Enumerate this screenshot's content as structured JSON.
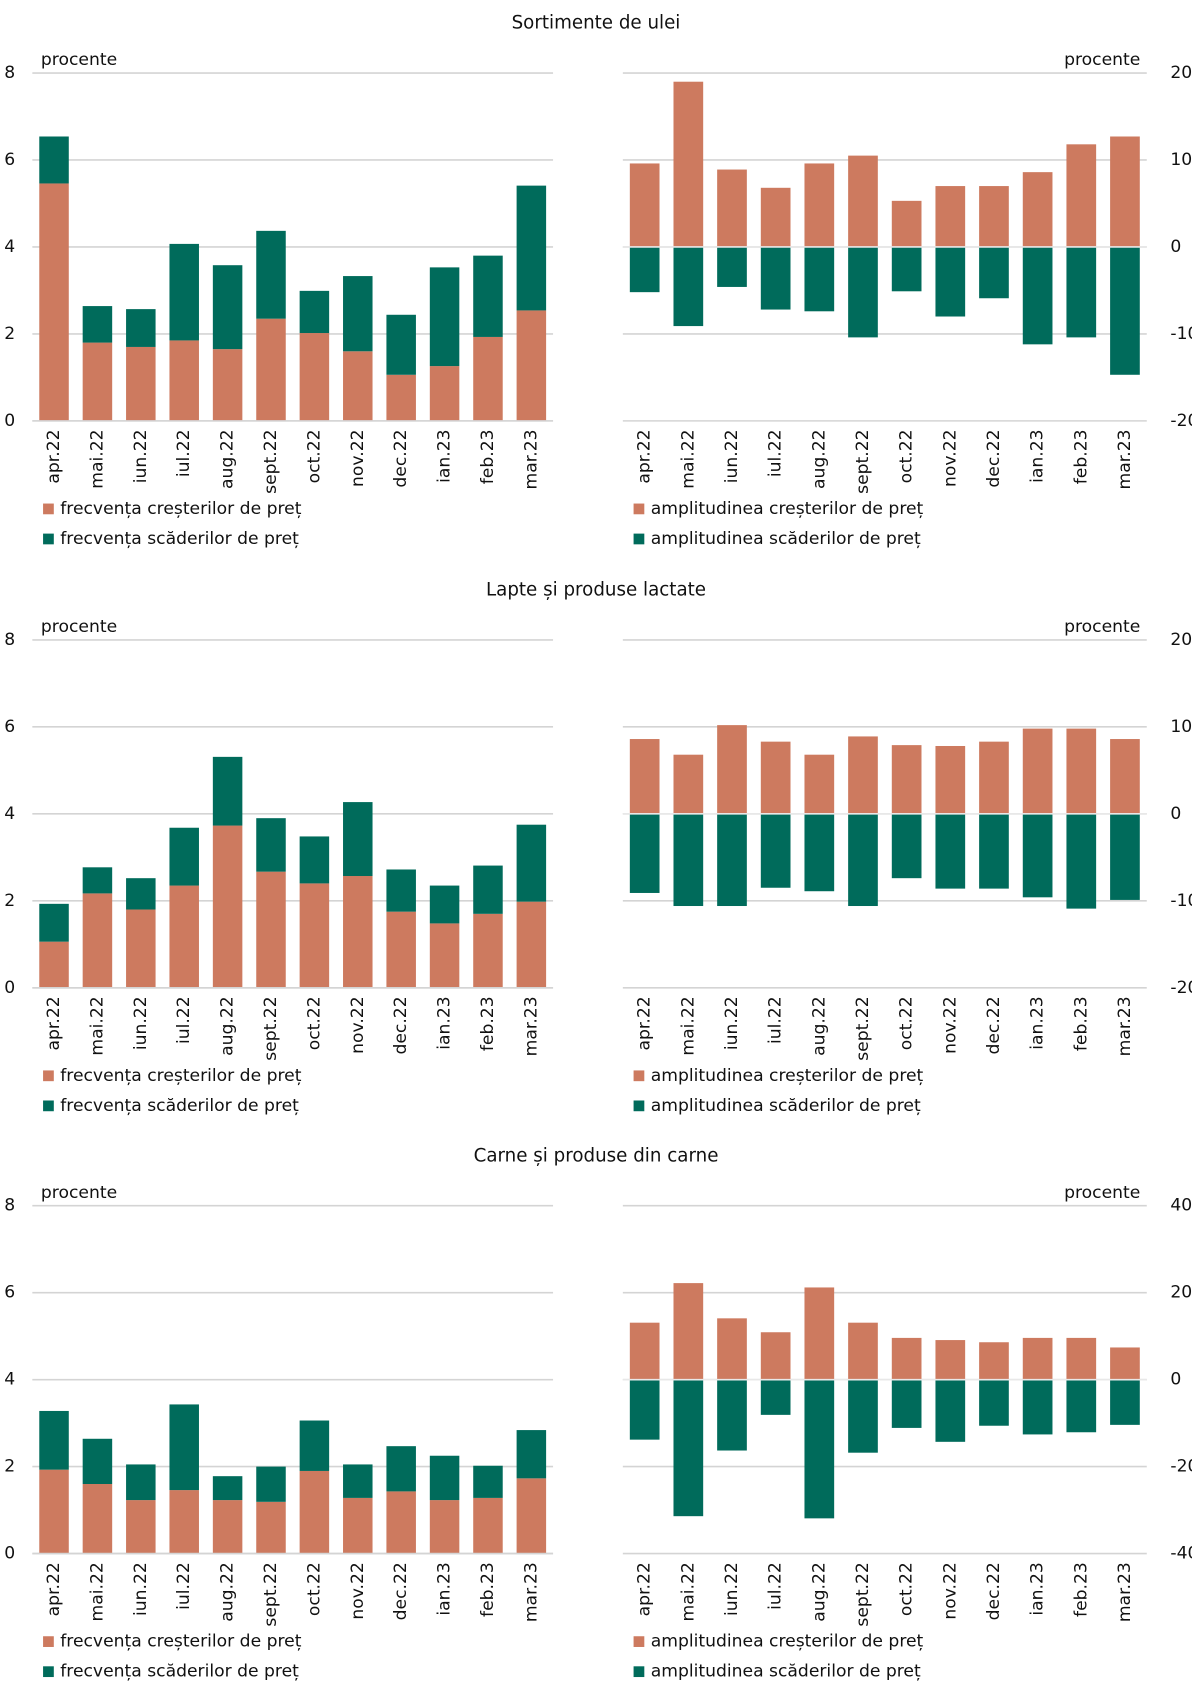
{
  "chart_data": [
    {
      "type": "bar",
      "stacked": true,
      "title": "Sortimente de ulei",
      "ylabel": "procente",
      "yaxis_side": "left",
      "legend": "bottom",
      "categories": [
        "apr.22",
        "mai.22",
        "iun.22",
        "iul.22",
        "aug.22",
        "sept.22",
        "oct.22",
        "nov.22",
        "dec.22",
        "ian.23",
        "feb.23",
        "mar.23"
      ],
      "ylim": [
        0,
        8
      ],
      "yticks": [
        0,
        2,
        4,
        6,
        8
      ],
      "grid": true,
      "series": [
        {
          "name": "frecvența creșterilor de preț",
          "color": "#cd7a5f",
          "values": [
            5.46,
            1.8,
            1.7,
            1.85,
            1.65,
            2.35,
            2.02,
            1.6,
            1.06,
            1.26,
            1.93,
            2.54
          ]
        },
        {
          "name": "frecvența scăderilor de preț",
          "color": "#006b5b",
          "values": [
            1.08,
            0.84,
            0.87,
            2.22,
            1.93,
            2.02,
            0.97,
            1.73,
            1.38,
            2.27,
            1.87,
            2.87
          ]
        }
      ]
    },
    {
      "type": "bar",
      "stacked": true,
      "ylabel": "procente",
      "yaxis_side": "right",
      "legend": "bottom",
      "categories": [
        "apr.22",
        "mai.22",
        "iun.22",
        "iul.22",
        "aug.22",
        "sept.22",
        "oct.22",
        "nov.22",
        "dec.22",
        "ian.23",
        "feb.23",
        "mar.23"
      ],
      "ylim": [
        -20,
        20
      ],
      "yticks": [
        -20,
        -10,
        0,
        10,
        20
      ],
      "grid": true,
      "series": [
        {
          "name": "amplitudinea creșterilor de preț",
          "color": "#cd7a5f",
          "values": [
            9.6,
            19.0,
            8.9,
            6.8,
            9.6,
            10.5,
            5.3,
            7.0,
            7.0,
            8.6,
            11.8,
            12.7
          ]
        },
        {
          "name": "amplitudinea scăderilor de preț",
          "color": "#006b5b",
          "values": [
            -5.2,
            -9.1,
            -4.6,
            -7.2,
            -7.4,
            -10.4,
            -5.1,
            -8.0,
            -5.9,
            -11.2,
            -10.4,
            -14.7
          ]
        }
      ]
    },
    {
      "type": "bar",
      "stacked": true,
      "title": "Lapte și produse lactate",
      "ylabel": "procente",
      "yaxis_side": "left",
      "legend": "bottom",
      "categories": [
        "apr.22",
        "mai.22",
        "iun.22",
        "iul.22",
        "aug.22",
        "sept.22",
        "oct.22",
        "nov.22",
        "dec.22",
        "ian.23",
        "feb.23",
        "mar.23"
      ],
      "ylim": [
        0,
        8
      ],
      "yticks": [
        0,
        2,
        4,
        6,
        8
      ],
      "grid": true,
      "series": [
        {
          "name": "frecvența creșterilor de preț",
          "color": "#cd7a5f",
          "values": [
            1.06,
            2.17,
            1.8,
            2.35,
            3.73,
            2.67,
            2.4,
            2.57,
            1.75,
            1.48,
            1.7,
            1.98
          ]
        },
        {
          "name": "frecvența scăderilor de preț",
          "color": "#006b5b",
          "values": [
            0.87,
            0.6,
            0.72,
            1.33,
            1.58,
            1.23,
            1.08,
            1.7,
            0.97,
            0.87,
            1.11,
            1.77
          ]
        }
      ]
    },
    {
      "type": "bar",
      "stacked": true,
      "ylabel": "procente",
      "yaxis_side": "right",
      "legend": "bottom",
      "categories": [
        "apr.22",
        "mai.22",
        "iun.22",
        "iul.22",
        "aug.22",
        "sept.22",
        "oct.22",
        "nov.22",
        "dec.22",
        "ian.23",
        "feb.23",
        "mar.23"
      ],
      "ylim": [
        -20,
        20
      ],
      "yticks": [
        -20,
        -10,
        0,
        10,
        20
      ],
      "grid": true,
      "series": [
        {
          "name": "amplitudinea creșterilor de preț",
          "color": "#cd7a5f",
          "values": [
            8.6,
            6.8,
            10.2,
            8.3,
            6.8,
            8.9,
            7.9,
            7.8,
            8.3,
            9.8,
            9.8,
            8.6
          ]
        },
        {
          "name": "amplitudinea scăderilor de preț",
          "color": "#006b5b",
          "values": [
            -9.1,
            -10.6,
            -10.6,
            -8.5,
            -8.9,
            -10.6,
            -7.4,
            -8.6,
            -8.6,
            -9.6,
            -10.9,
            -9.9
          ]
        }
      ]
    },
    {
      "type": "bar",
      "stacked": true,
      "title": "Carne și produse din carne",
      "ylabel": "procente",
      "yaxis_side": "left",
      "legend": "bottom",
      "categories": [
        "apr.22",
        "mai.22",
        "iun.22",
        "iul.22",
        "aug.22",
        "sept.22",
        "oct.22",
        "nov.22",
        "dec.22",
        "ian.23",
        "feb.23",
        "mar.23"
      ],
      "ylim": [
        0,
        8
      ],
      "yticks": [
        0,
        2,
        4,
        6,
        8
      ],
      "grid": true,
      "series": [
        {
          "name": "frecvența creșterilor de preț",
          "color": "#cd7a5f",
          "values": [
            1.93,
            1.6,
            1.23,
            1.46,
            1.23,
            1.19,
            1.9,
            1.28,
            1.43,
            1.23,
            1.28,
            1.73
          ]
        },
        {
          "name": "frecvența scăderilor de preț",
          "color": "#006b5b",
          "values": [
            1.35,
            1.04,
            0.82,
            1.97,
            0.55,
            0.81,
            1.16,
            0.77,
            1.04,
            1.02,
            0.74,
            1.11
          ]
        }
      ]
    },
    {
      "type": "bar",
      "stacked": true,
      "ylabel": "procente",
      "yaxis_side": "right",
      "legend": "bottom",
      "categories": [
        "apr.22",
        "mai.22",
        "iun.22",
        "iul.22",
        "aug.22",
        "sept.22",
        "oct.22",
        "nov.22",
        "dec.22",
        "ian.23",
        "feb.23",
        "mar.23"
      ],
      "ylim": [
        -40,
        40
      ],
      "yticks": [
        -40,
        -20,
        0,
        20,
        40
      ],
      "grid": true,
      "series": [
        {
          "name": "amplitudinea creșterilor de preț",
          "color": "#cd7a5f",
          "values": [
            13.1,
            22.2,
            14.1,
            10.9,
            21.2,
            13.1,
            9.6,
            9.1,
            8.6,
            9.6,
            9.6,
            7.4
          ]
        },
        {
          "name": "amplitudinea scăderilor de preț",
          "color": "#006b5b",
          "values": [
            -13.8,
            -31.4,
            -16.3,
            -8.1,
            -31.9,
            -16.8,
            -11.1,
            -14.3,
            -10.6,
            -12.6,
            -12.1,
            -10.4
          ]
        }
      ]
    }
  ]
}
